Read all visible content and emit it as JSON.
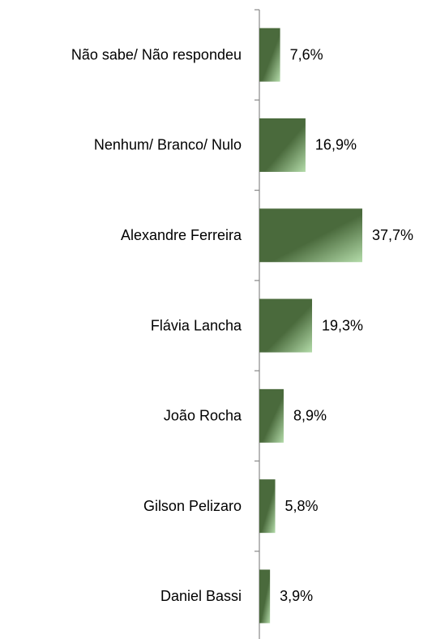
{
  "chart_data": {
    "type": "bar",
    "orientation": "horizontal",
    "categories": [
      "Não sabe/ Não respondeu",
      "Nenhum/ Branco/ Nulo",
      "Alexandre Ferreira",
      "Flávia Lancha",
      "João Rocha",
      "Gilson Pelizaro",
      "Daniel Bassi"
    ],
    "values": [
      7.6,
      16.9,
      37.7,
      19.3,
      8.9,
      5.8,
      3.9
    ],
    "value_labels": [
      "7,6%",
      "16,9%",
      "37,7%",
      "19,3%",
      "8,9%",
      "5,8%",
      "3,9%"
    ],
    "color": "#4a6a3c"
  }
}
